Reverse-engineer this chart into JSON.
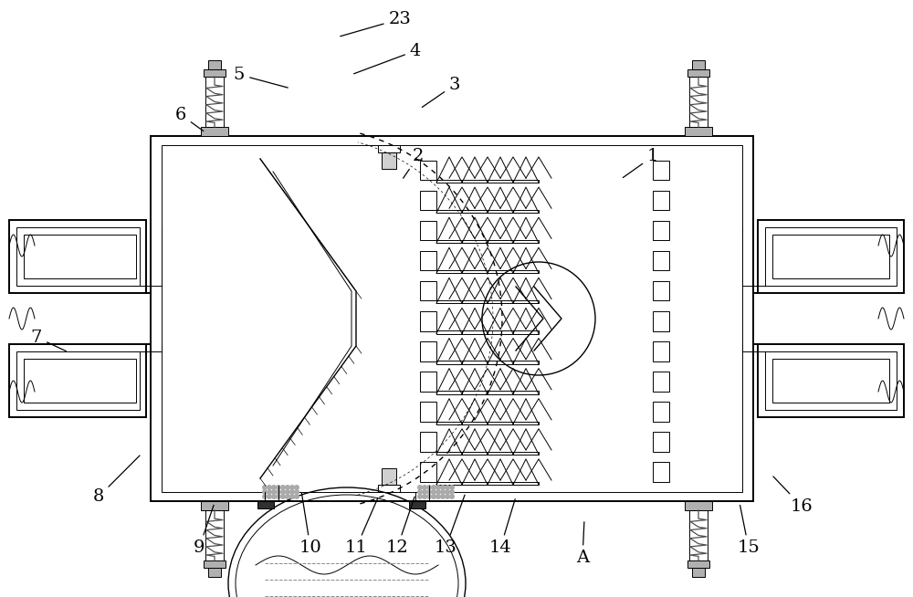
{
  "bg_color": "#ffffff",
  "lc": "#000000",
  "figsize": [
    10.0,
    6.54
  ],
  "dpi": 100,
  "lw_main": 1.4,
  "lw_med": 1.0,
  "lw_thin": 0.7,
  "gray_fill": "#b0b0b0",
  "light_fill": "#e8e8e8",
  "green_line": "#009900",
  "purple_line": "#990099",
  "labels_data": {
    "7": [
      0.04,
      0.435,
      0.075,
      0.41
    ],
    "8": [
      0.108,
      0.168,
      0.155,
      0.24
    ],
    "9": [
      0.218,
      0.082,
      0.235,
      0.158
    ],
    "10": [
      0.34,
      0.082,
      0.33,
      0.178
    ],
    "11": [
      0.39,
      0.082,
      0.415,
      0.17
    ],
    "12": [
      0.435,
      0.082,
      0.455,
      0.172
    ],
    "13": [
      0.488,
      0.082,
      0.51,
      0.175
    ],
    "14": [
      0.548,
      0.082,
      0.565,
      0.168
    ],
    "A": [
      0.638,
      0.065,
      0.64,
      0.13
    ],
    "15": [
      0.82,
      0.082,
      0.81,
      0.158
    ],
    "16": [
      0.878,
      0.152,
      0.845,
      0.205
    ],
    "1": [
      0.715,
      0.738,
      0.68,
      0.7
    ],
    "2": [
      0.458,
      0.738,
      0.44,
      0.698
    ],
    "3": [
      0.498,
      0.858,
      0.46,
      0.818
    ],
    "4": [
      0.455,
      0.915,
      0.385,
      0.875
    ],
    "5": [
      0.262,
      0.875,
      0.318,
      0.852
    ],
    "6": [
      0.198,
      0.808,
      0.225,
      0.778
    ],
    "23": [
      0.438,
      0.968,
      0.37,
      0.938
    ]
  }
}
